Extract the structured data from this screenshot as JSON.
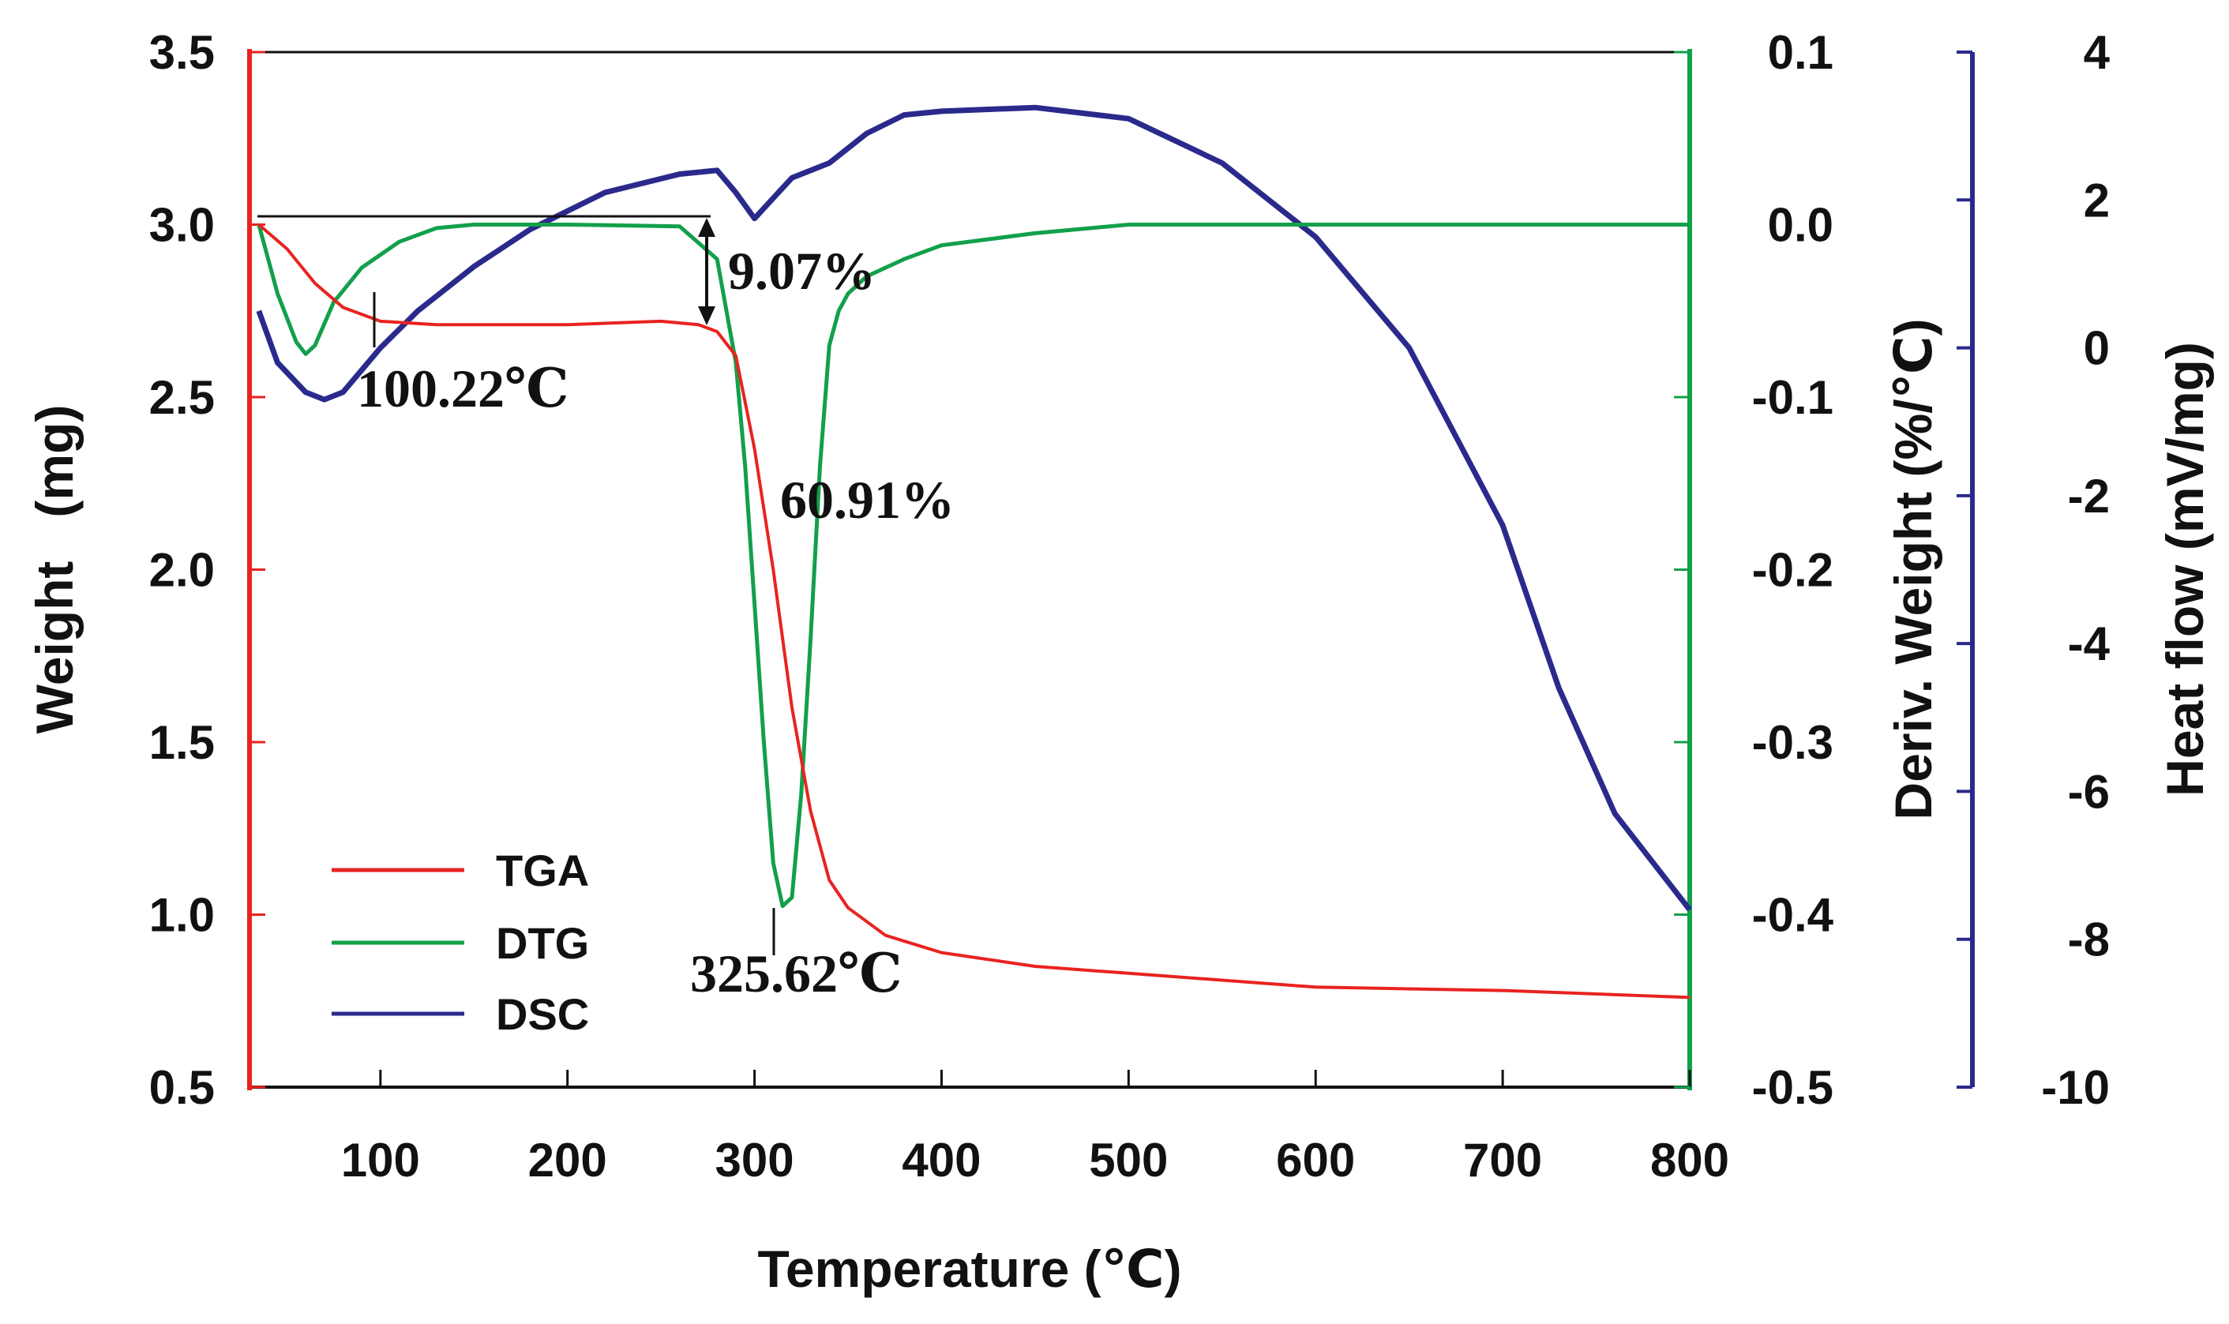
{
  "chart_data": {
    "type": "line",
    "title": "",
    "xlabel": "Temperature (℃)",
    "ylabel_left": "Weight   (mg)",
    "ylabel_right1": "Deriv. Weight (%/℃)",
    "ylabel_right2": "Heat flow (mV/mg)",
    "xlim": [
      30,
      800
    ],
    "ylim_weight": [
      0.5,
      3.5
    ],
    "ylim_deriv": [
      -0.5,
      0.1
    ],
    "ylim_heat": [
      -10,
      4
    ],
    "xticks": [
      "100",
      "200",
      "300",
      "400",
      "500",
      "600",
      "700",
      "800"
    ],
    "yticks_weight": [
      "0.5",
      "1.0",
      "1.5",
      "2.0",
      "2.5",
      "3.0",
      "3.5"
    ],
    "yticks_deriv": [
      "-0.5",
      "-0.4",
      "-0.3",
      "-0.2",
      "-0.1",
      "0.0",
      "0.1"
    ],
    "yticks_heat": [
      "-10",
      "-8",
      "-6",
      "-4",
      "-2",
      "0",
      "2",
      "4"
    ],
    "colors": {
      "tga": "#e8231f",
      "dtg": "#12a04a",
      "dsc": "#2a2a8c"
    },
    "legend": {
      "position": "bottom-left",
      "entries": [
        "TGA",
        "DTG",
        "DSC"
      ]
    },
    "annotations": {
      "loss1": "9.07%",
      "loss2": "60.91%",
      "peak1": "100.22℃",
      "peak2": "325.62℃"
    },
    "series": [
      {
        "name": "TGA",
        "axis": "weight",
        "x": [
          35,
          50,
          65,
          80,
          100,
          130,
          150,
          200,
          250,
          270,
          280,
          290,
          300,
          310,
          320,
          330,
          340,
          350,
          370,
          400,
          450,
          500,
          600,
          700,
          800
        ],
        "values": [
          3.0,
          2.93,
          2.83,
          2.76,
          2.72,
          2.71,
          2.71,
          2.71,
          2.72,
          2.71,
          2.69,
          2.62,
          2.35,
          2.0,
          1.6,
          1.3,
          1.1,
          1.02,
          0.94,
          0.89,
          0.85,
          0.83,
          0.79,
          0.78,
          0.76
        ]
      },
      {
        "name": "DTG",
        "axis": "deriv",
        "x": [
          35,
          45,
          55,
          60,
          65,
          75,
          90,
          110,
          130,
          150,
          200,
          260,
          280,
          290,
          295,
          300,
          305,
          310,
          315,
          320,
          325,
          330,
          335,
          340,
          345,
          350,
          360,
          380,
          400,
          450,
          500,
          600,
          700,
          800
        ],
        "values": [
          0.0,
          -0.04,
          -0.068,
          -0.075,
          -0.07,
          -0.045,
          -0.025,
          -0.01,
          -0.002,
          0.0,
          0.0,
          -0.001,
          -0.02,
          -0.08,
          -0.14,
          -0.22,
          -0.3,
          -0.37,
          -0.395,
          -0.39,
          -0.33,
          -0.24,
          -0.14,
          -0.07,
          -0.05,
          -0.04,
          -0.03,
          -0.02,
          -0.012,
          -0.005,
          0.0,
          0.0,
          0.0,
          0.0
        ]
      },
      {
        "name": "DSC",
        "axis": "heat",
        "x": [
          35,
          45,
          60,
          70,
          80,
          90,
          100,
          120,
          150,
          180,
          220,
          260,
          280,
          290,
          300,
          320,
          340,
          360,
          380,
          400,
          450,
          500,
          550,
          600,
          650,
          700,
          730,
          760,
          800
        ],
        "values": [
          0.5,
          -0.2,
          -0.6,
          -0.7,
          -0.6,
          -0.3,
          0.0,
          0.5,
          1.1,
          1.6,
          2.1,
          2.35,
          2.4,
          2.1,
          1.75,
          2.3,
          2.5,
          2.9,
          3.15,
          3.2,
          3.25,
          3.1,
          2.5,
          1.5,
          0.0,
          -2.4,
          -4.6,
          -6.3,
          -7.6
        ]
      }
    ]
  }
}
